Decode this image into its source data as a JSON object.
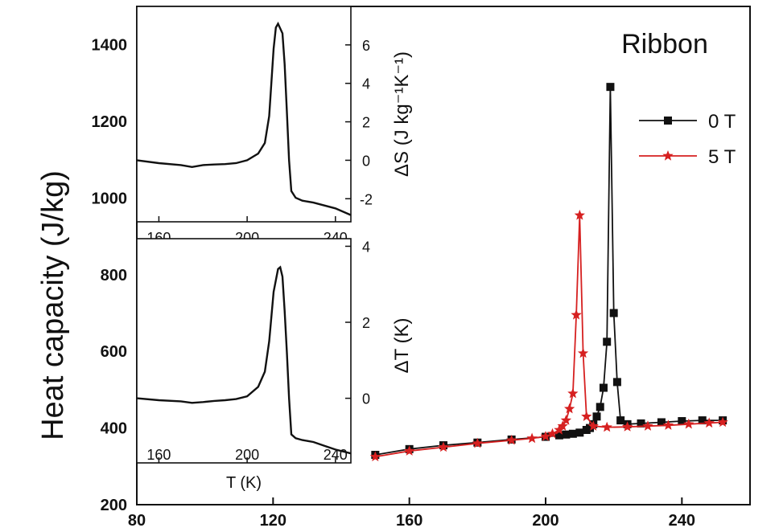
{
  "chart_data": [
    {
      "type": "line",
      "title": "Ribbon",
      "xlabel": "",
      "ylabel": "Heat capacity (J/kg)",
      "xlim": [
        80,
        260
      ],
      "ylim": [
        200,
        1500
      ],
      "xticks": [
        80,
        120,
        160,
        200,
        240
      ],
      "yticks": [
        200,
        400,
        600,
        800,
        1000,
        1200,
        1400
      ],
      "legend": "right",
      "series": [
        {
          "name": "0 T",
          "color": "#111111",
          "marker": "square",
          "x": [
            150,
            160,
            170,
            180,
            190,
            200,
            204,
            206,
            208,
            210,
            212,
            213,
            214,
            215,
            216,
            217,
            218,
            219,
            220,
            221,
            222,
            224,
            228,
            234,
            240,
            246,
            252
          ],
          "y": [
            330,
            345,
            355,
            362,
            370,
            377,
            381,
            383,
            385,
            388,
            395,
            400,
            410,
            430,
            455,
            505,
            625,
            1290,
            700,
            520,
            420,
            410,
            412,
            415,
            418,
            420,
            420
          ]
        },
        {
          "name": "5 T",
          "color": "#d62020",
          "marker": "star",
          "x": [
            150,
            160,
            170,
            180,
            190,
            196,
            200,
            202,
            204,
            205,
            206,
            207,
            208,
            209,
            210,
            211,
            212,
            214,
            218,
            224,
            230,
            236,
            242,
            248,
            252
          ],
          "y": [
            325,
            340,
            350,
            360,
            368,
            373,
            378,
            385,
            395,
            405,
            420,
            450,
            490,
            695,
            955,
            595,
            430,
            405,
            402,
            403,
            405,
            407,
            410,
            413,
            415
          ]
        }
      ]
    },
    {
      "type": "line",
      "title": "",
      "xlabel": "",
      "ylabel": "ΔS (J kg⁻¹K⁻¹)",
      "xlim": [
        150,
        247
      ],
      "ylim": [
        -3.2,
        8
      ],
      "xticks": [
        160,
        200,
        240
      ],
      "yticks": [
        -2,
        0,
        2,
        4,
        6
      ],
      "series": [
        {
          "name": "ΔS",
          "color": "#111111",
          "x": [
            150,
            160,
            170,
            175,
            180,
            185,
            190,
            195,
            200,
            205,
            208,
            210,
            212,
            213,
            214,
            216,
            217,
            218,
            219,
            220,
            222,
            225,
            230,
            235,
            240,
            247
          ],
          "y": [
            0.0,
            -0.15,
            -0.25,
            -0.35,
            -0.25,
            -0.22,
            -0.2,
            -0.15,
            0.0,
            0.35,
            0.9,
            2.3,
            5.8,
            6.9,
            7.1,
            6.6,
            5.0,
            2.5,
            0.0,
            -1.6,
            -1.95,
            -2.1,
            -2.2,
            -2.35,
            -2.5,
            -2.85
          ]
        }
      ]
    },
    {
      "type": "line",
      "title": "",
      "xlabel": "T (K)",
      "ylabel": "ΔT (K)",
      "xlim": [
        150,
        247
      ],
      "ylim": [
        -1.7,
        4.2
      ],
      "xticks": [
        160,
        200,
        240
      ],
      "yticks": [
        0,
        2,
        4
      ],
      "series": [
        {
          "name": "ΔT",
          "color": "#111111",
          "x": [
            150,
            160,
            170,
            175,
            180,
            185,
            190,
            195,
            200,
            205,
            208,
            210,
            212,
            214,
            215,
            216,
            217,
            218,
            219,
            220,
            222,
            225,
            230,
            235,
            240,
            247
          ],
          "y": [
            0.0,
            -0.05,
            -0.08,
            -0.12,
            -0.1,
            -0.07,
            -0.05,
            -0.02,
            0.05,
            0.3,
            0.7,
            1.5,
            2.8,
            3.4,
            3.45,
            3.2,
            2.3,
            1.2,
            0.0,
            -0.95,
            -1.05,
            -1.1,
            -1.15,
            -1.25,
            -1.35,
            -1.45
          ]
        }
      ]
    }
  ]
}
